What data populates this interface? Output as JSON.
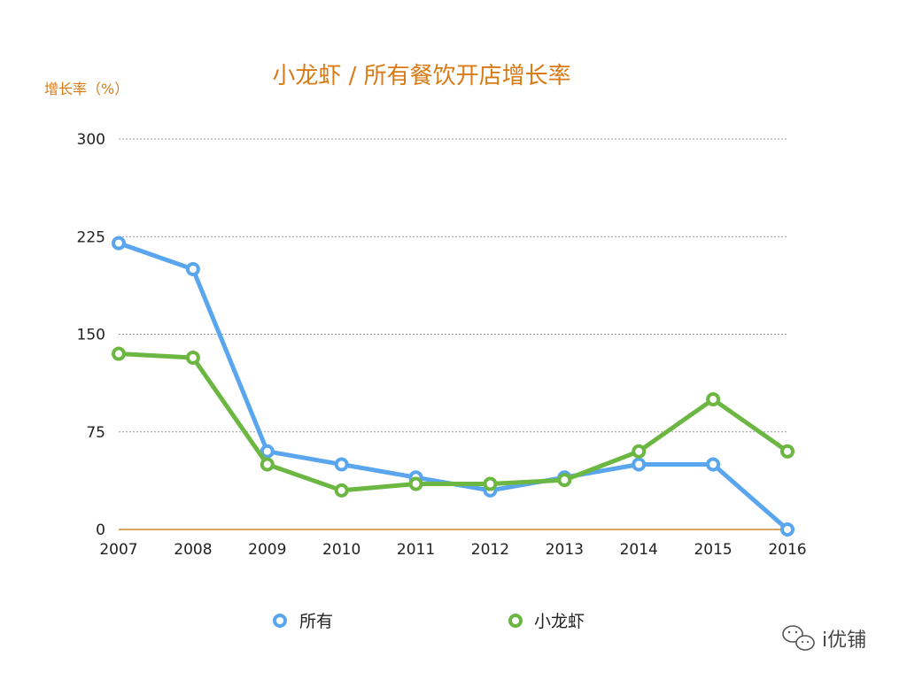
{
  "chart_data": {
    "type": "line",
    "title": "小龙虾 / 所有餐饮开店增长率",
    "ylabel": "增长率（%）",
    "xlabel": "",
    "categories": [
      "2007",
      "2008",
      "2009",
      "2010",
      "2011",
      "2012",
      "2013",
      "2014",
      "2015",
      "2016"
    ],
    "ylim": [
      0,
      300
    ],
    "yticks": [
      0,
      75,
      150,
      225,
      300
    ],
    "grid": true,
    "legend_position": "bottom",
    "series": [
      {
        "name": "所有",
        "color": "#5aa6ee",
        "values": [
          220,
          200,
          60,
          50,
          40,
          30,
          40,
          50,
          50,
          0
        ]
      },
      {
        "name": "小龙虾",
        "color": "#6cb742",
        "values": [
          135,
          132,
          50,
          30,
          35,
          35,
          38,
          60,
          100,
          60
        ]
      }
    ]
  },
  "watermark": {
    "text": "i优铺",
    "icon": "wechat-icon"
  },
  "colors": {
    "title": "#d97a14",
    "axis": "#c8892e",
    "grid": "#9a9a9a"
  }
}
